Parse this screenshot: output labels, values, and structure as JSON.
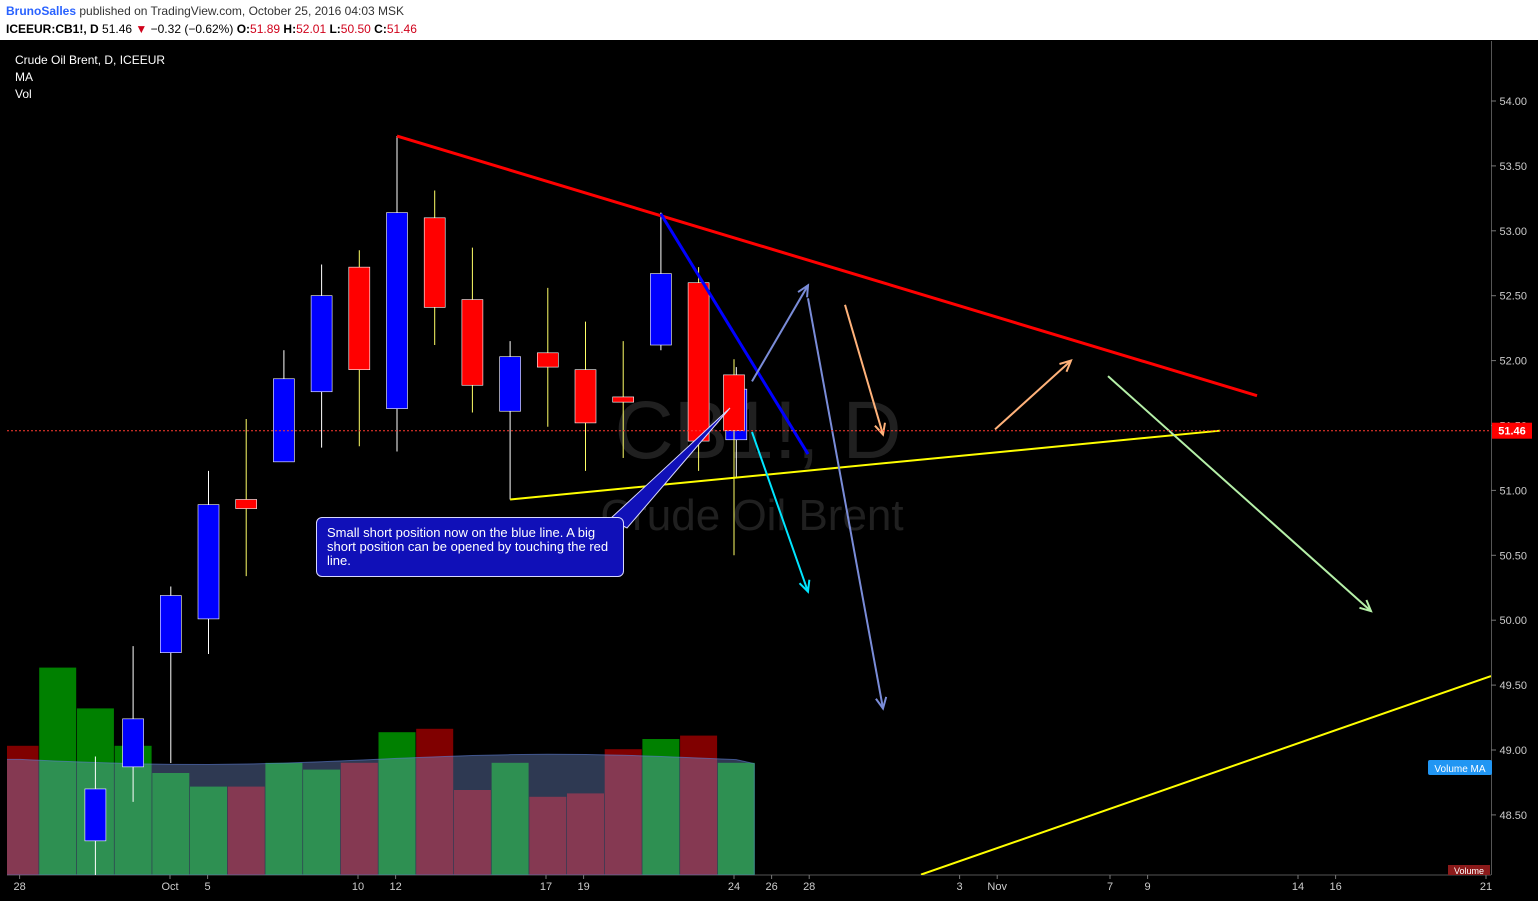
{
  "header": {
    "author": "BrunoSalles",
    "published_text": "published on TradingView.com, October 25, 2016 04:03 MSK",
    "symbol": "ICEEUR:CB1!, D",
    "last": "51.46",
    "change_arrow": "▼",
    "change": "−0.32 (−0.62%)",
    "o_label": "O:",
    "o": "51.89",
    "h_label": "H:",
    "h": "52.01",
    "l_label": "L:",
    "l": "50.50",
    "c_label": "C:",
    "c": "51.46"
  },
  "legend": {
    "title": "Crude Oil Brent, D, ICEEUR",
    "indicator1": "MA",
    "indicator2": "Vol"
  },
  "watermark": {
    "big": "CB1!, D",
    "small": "Crude Oil Brent"
  },
  "annotation": "Small short position now on the blue line. A big short position can be opened by touching the red line.",
  "price_tag": "51.46",
  "volume_ma_tag": "Volume MA",
  "volume_tag": "Volume",
  "colors": {
    "background": "#000000",
    "up": "#0000ff",
    "down": "#ff0000",
    "vol_up": "#008000",
    "vol_down": "#800000",
    "resistance": "#ff0000",
    "support": "#ffff00",
    "blue_trend": "#0000ff"
  },
  "chart_data": {
    "type": "candlestick",
    "y_range": [
      48.1,
      54.5
    ],
    "y_ticks": [
      "54.00",
      "53.50",
      "53.00",
      "52.50",
      "52.00",
      "51.50",
      "51.00",
      "50.50",
      "50.00",
      "49.50",
      "49.00",
      "48.50"
    ],
    "x_ticks": [
      "28",
      "Oct",
      "5",
      "10",
      "12",
      "17",
      "19",
      "24",
      "26",
      "28",
      "Nov",
      "3",
      "7",
      "9",
      "14",
      "16",
      "21"
    ],
    "candles": [
      {
        "date": "Sep 28",
        "o": 48.3,
        "h": 48.95,
        "l": 47.9,
        "c": 48.7
      },
      {
        "date": "Sep 29",
        "o": 48.87,
        "h": 49.8,
        "l": 48.6,
        "c": 49.24
      },
      {
        "date": "Sep 30",
        "o": 49.75,
        "h": 50.26,
        "l": 48.9,
        "c": 50.19
      },
      {
        "date": "Oct 3",
        "o": 50.01,
        "h": 51.15,
        "l": 49.74,
        "c": 50.89
      },
      {
        "date": "Oct 4",
        "o": 50.93,
        "h": 51.55,
        "l": 50.34,
        "c": 50.86
      },
      {
        "date": "Oct 5",
        "o": 51.22,
        "h": 52.08,
        "l": 51.22,
        "c": 51.86
      },
      {
        "date": "Oct 6",
        "o": 51.76,
        "h": 52.74,
        "l": 51.33,
        "c": 52.5
      },
      {
        "date": "Oct 7",
        "o": 52.72,
        "h": 52.85,
        "l": 51.34,
        "c": 51.93
      },
      {
        "date": "Oct 10",
        "o": 51.63,
        "h": 53.73,
        "l": 51.3,
        "c": 53.14
      },
      {
        "date": "Oct 11",
        "o": 53.1,
        "h": 53.31,
        "l": 52.12,
        "c": 52.41
      },
      {
        "date": "Oct 12",
        "o": 52.47,
        "h": 52.87,
        "l": 51.6,
        "c": 51.81
      },
      {
        "date": "Oct 13",
        "o": 51.61,
        "h": 52.15,
        "l": 50.93,
        "c": 52.03
      },
      {
        "date": "Oct 14",
        "o": 52.06,
        "h": 52.56,
        "l": 51.49,
        "c": 51.95
      },
      {
        "date": "Oct 17",
        "o": 51.93,
        "h": 52.3,
        "l": 51.15,
        "c": 51.52
      },
      {
        "date": "Oct 18",
        "o": 51.72,
        "h": 52.15,
        "l": 51.25,
        "c": 51.68
      },
      {
        "date": "Oct 19",
        "o": 52.12,
        "h": 53.14,
        "l": 52.08,
        "c": 52.67
      },
      {
        "date": "Oct 20",
        "o": 52.6,
        "h": 52.72,
        "l": 51.15,
        "c": 51.38
      },
      {
        "date": "Oct 21",
        "o": 51.39,
        "h": 51.95,
        "l": 51.1,
        "c": 51.78
      },
      {
        "date": "Oct 24",
        "o": 51.89,
        "h": 52.01,
        "l": 50.5,
        "c": 51.46
      }
    ],
    "volume": [
      {
        "date": "Sep 26",
        "v": 0.38,
        "dir": "down"
      },
      {
        "date": "Sep 27",
        "v": 0.61,
        "dir": "up"
      },
      {
        "date": "Sep 28",
        "v": 0.49,
        "dir": "up"
      },
      {
        "date": "Sep 29",
        "v": 0.38,
        "dir": "up"
      },
      {
        "date": "Sep 30",
        "v": 0.3,
        "dir": "up"
      },
      {
        "date": "Oct 3",
        "v": 0.26,
        "dir": "up"
      },
      {
        "date": "Oct 4",
        "v": 0.26,
        "dir": "down"
      },
      {
        "date": "Oct 5",
        "v": 0.33,
        "dir": "up"
      },
      {
        "date": "Oct 6",
        "v": 0.31,
        "dir": "up"
      },
      {
        "date": "Oct 7",
        "v": 0.33,
        "dir": "down"
      },
      {
        "date": "Oct 10",
        "v": 0.42,
        "dir": "up"
      },
      {
        "date": "Oct 11",
        "v": 0.43,
        "dir": "down"
      },
      {
        "date": "Oct 12",
        "v": 0.25,
        "dir": "down"
      },
      {
        "date": "Oct 13",
        "v": 0.33,
        "dir": "up"
      },
      {
        "date": "Oct 14",
        "v": 0.23,
        "dir": "down"
      },
      {
        "date": "Oct 17",
        "v": 0.24,
        "dir": "down"
      },
      {
        "date": "Oct 18",
        "v": 0.37,
        "dir": "down"
      },
      {
        "date": "Oct 19",
        "v": 0.4,
        "dir": "up"
      },
      {
        "date": "Oct 20",
        "v": 0.41,
        "dir": "down"
      },
      {
        "date": "Oct 21",
        "v": 0.33,
        "dir": "up"
      }
    ],
    "last_price": 51.46,
    "trendlines": [
      {
        "name": "resistance-line",
        "color": "#ff0000",
        "from": [
          "Oct 10",
          53.73
        ],
        "to": [
          "Nov 11",
          51.73
        ]
      },
      {
        "name": "short-trend-line",
        "color": "#0000ff",
        "from": [
          "Oct 19",
          53.13
        ],
        "to": [
          "Oct 26",
          51.28
        ]
      },
      {
        "name": "support-line",
        "color": "#ffff00",
        "from": [
          "Oct 13",
          50.93
        ],
        "to": [
          "Nov 10",
          51.46
        ]
      },
      {
        "name": "long-support-line",
        "color": "#ffff00",
        "from": [
          "Oct 31",
          48.04
        ],
        "to": [
          "Nov 21",
          49.57
        ]
      }
    ],
    "scenario_arrows": [
      {
        "name": "cyan-arrow",
        "color": "#00e5ff",
        "from": [
          "Oct 25",
          51.45
        ],
        "to": [
          "Oct 26",
          50.22
        ]
      },
      {
        "name": "blue-up-arrow",
        "color": "#7a8cd8",
        "from": [
          "Oct 25",
          51.84
        ],
        "to": [
          "Oct 26",
          52.58
        ]
      },
      {
        "name": "blue-down-arrow",
        "color": "#7a8cd8",
        "from": [
          "Oct 26",
          52.48
        ],
        "to": [
          "Oct 28",
          49.32
        ]
      },
      {
        "name": "orange-down-arrow",
        "color": "#ffb27a",
        "from": [
          "Oct 27",
          52.43
        ],
        "to": [
          "Oct 28",
          51.43
        ]
      },
      {
        "name": "orange-up-arrow",
        "color": "#ffb27a",
        "from": [
          "Nov 2",
          51.47
        ],
        "to": [
          "Nov 4",
          52.0
        ]
      },
      {
        "name": "green-down-arrow",
        "color": "#b5f0a8",
        "from": [
          "Nov 7",
          51.88
        ],
        "to": [
          "Nov 16",
          50.07
        ]
      }
    ]
  }
}
